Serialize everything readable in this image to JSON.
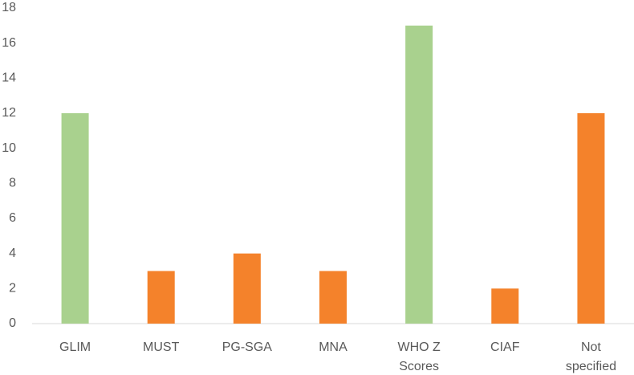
{
  "chart_data": {
    "type": "bar",
    "categories": [
      "GLIM",
      "MUST",
      "PG-SGA",
      "MNA",
      "WHO Z Scores",
      "CIAF",
      "Not specified"
    ],
    "values": [
      12,
      3,
      4,
      3,
      17,
      2,
      12
    ],
    "colors": [
      "#a9d18e",
      "#f4822b",
      "#f4822b",
      "#f4822b",
      "#a9d18e",
      "#f4822b",
      "#f4822b"
    ],
    "ylim": [
      0,
      18
    ],
    "yticks": [
      0,
      2,
      4,
      6,
      8,
      10,
      12,
      14,
      16,
      18
    ],
    "grid": false
  }
}
